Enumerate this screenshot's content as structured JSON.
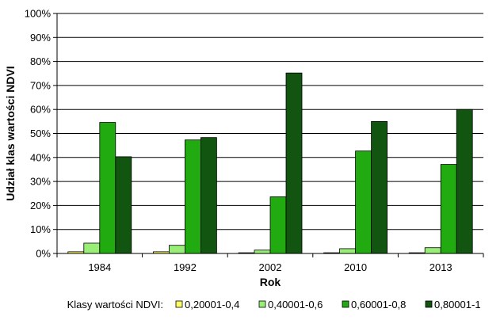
{
  "chart_data": {
    "type": "bar",
    "title": "",
    "xlabel": "Rok",
    "ylabel": "Udział klas wartości NDVI",
    "ylim": [
      0,
      100
    ],
    "yticks": [
      "0%",
      "10%",
      "20%",
      "30%",
      "40%",
      "50%",
      "60%",
      "70%",
      "80%",
      "90%",
      "100%"
    ],
    "categories": [
      "1984",
      "1992",
      "2002",
      "2010",
      "2013"
    ],
    "legend_title": "Klasy wartości NDVI:",
    "legend_position": "bottom",
    "grid": true,
    "series": [
      {
        "name": "0,20001-0,4",
        "color": "#ffff66",
        "values": [
          0.7,
          0.7,
          0.3,
          0.3,
          0.3
        ]
      },
      {
        "name": "0,40001-0,6",
        "color": "#99ee77",
        "values": [
          4.3,
          3.4,
          1.4,
          2.0,
          2.4
        ]
      },
      {
        "name": "0,60001-0,8",
        "color": "#22aa11",
        "values": [
          54.6,
          47.3,
          23.6,
          42.7,
          37.1
        ]
      },
      {
        "name": "0,80001-1",
        "color": "#115511",
        "values": [
          40.3,
          48.3,
          75.2,
          55.0,
          60.0
        ]
      }
    ]
  }
}
